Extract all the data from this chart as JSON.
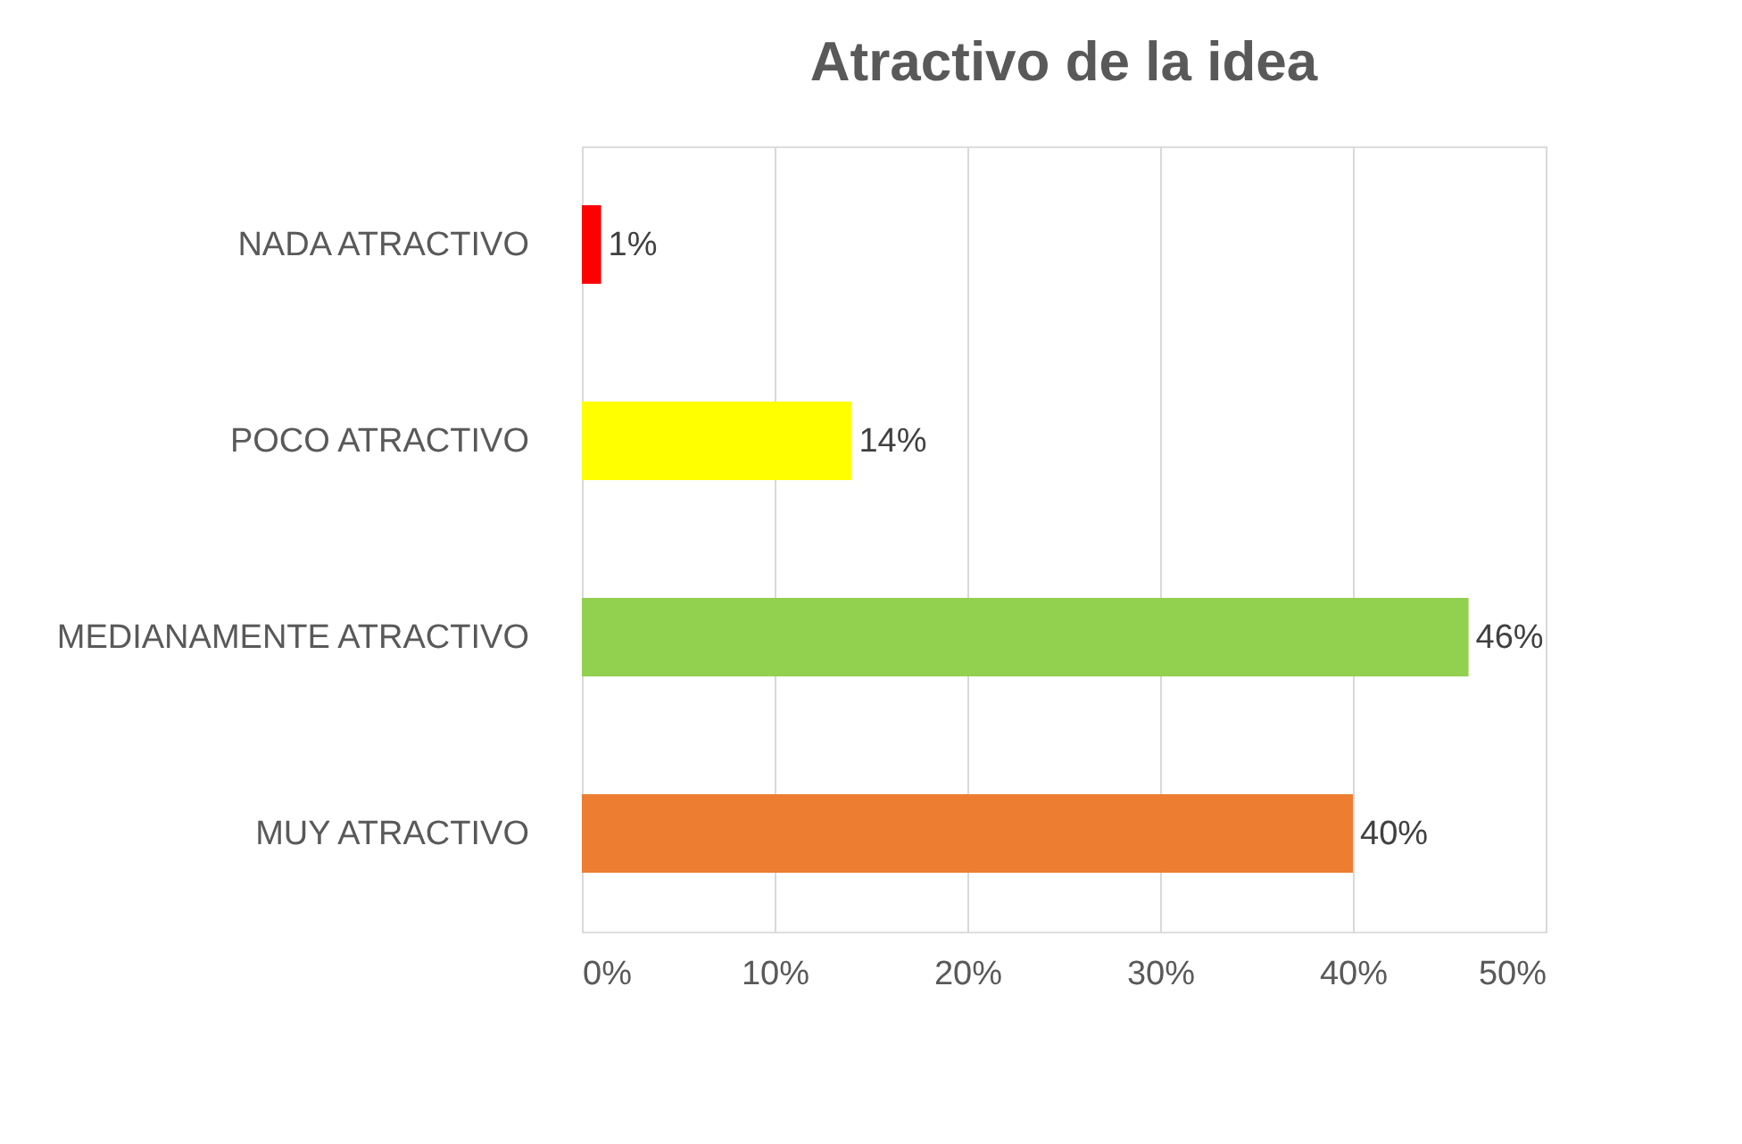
{
  "chart_data": {
    "type": "bar",
    "orientation": "horizontal",
    "title": "Atractivo de la idea",
    "categories": [
      "NADA ATRACTIVO",
      "POCO ATRACTIVO",
      "MEDIANAMENTE ATRACTIVO",
      "MUY ATRACTIVO"
    ],
    "values": [
      1,
      14,
      46,
      40
    ],
    "value_labels": [
      "1%",
      "14%",
      "46%",
      "40%"
    ],
    "colors": [
      "#ff0000",
      "#ffff00",
      "#92d050",
      "#ed7d31"
    ],
    "xlim": [
      0,
      50
    ],
    "xticks": [
      {
        "value": 0,
        "label": "0%"
      },
      {
        "value": 10,
        "label": "10%"
      },
      {
        "value": 20,
        "label": "20%"
      },
      {
        "value": 30,
        "label": "30%"
      },
      {
        "value": 40,
        "label": "40%"
      },
      {
        "value": 50,
        "label": "50%"
      }
    ],
    "grid": "x"
  }
}
